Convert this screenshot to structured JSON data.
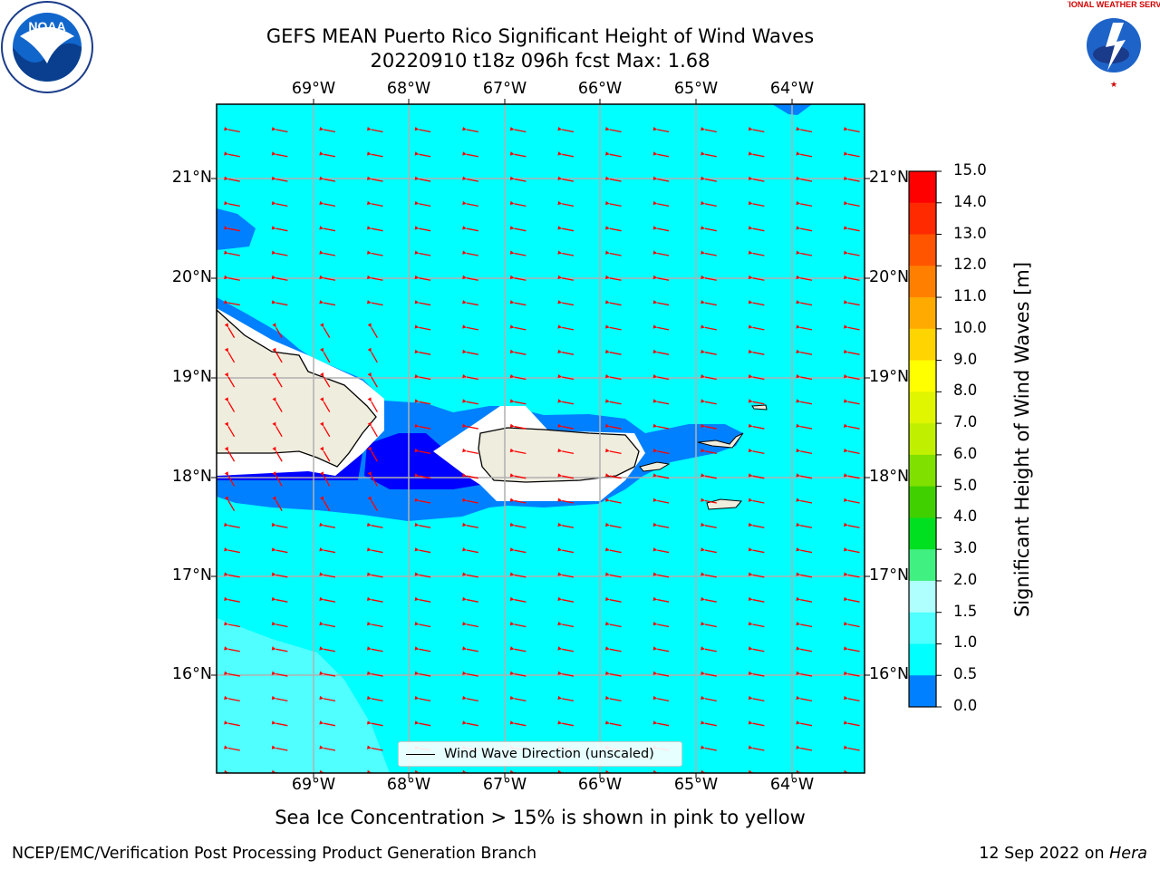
{
  "title": {
    "line1": "GEFS MEAN Puerto Rico Significant Height of Wind Waves",
    "line2": "20220910 t18z 096h fcst   Max: 1.68"
  },
  "lon_labels": [
    "69°W",
    "68°W",
    "67°W",
    "66°W",
    "65°W",
    "64°W"
  ],
  "lat_labels": [
    "21°N",
    "20°N",
    "19°N",
    "18°N",
    "17°N",
    "16°N"
  ],
  "colorbar": {
    "title": "Significant Height of Wind Waves [m]",
    "ticks": [
      "15.0",
      "14.0",
      "13.0",
      "12.0",
      "11.0",
      "10.0",
      "9.0",
      "8.0",
      "7.0",
      "6.0",
      "5.0",
      "4.0",
      "3.0",
      "2.0",
      "1.5",
      "1.0",
      "0.5",
      "0.0"
    ],
    "colors": [
      "#ff0000",
      "#ff2a00",
      "#ff5500",
      "#ff8000",
      "#ffaa00",
      "#ffd400",
      "#ffff00",
      "#e0f500",
      "#c0f000",
      "#80e000",
      "#40d000",
      "#00e020",
      "#40f080",
      "#b0ffff",
      "#50ffff",
      "#00ffff",
      "#0080ff",
      "#0000ff"
    ]
  },
  "legend": {
    "label": "Wind Wave Direction (unscaled)"
  },
  "note": "Sea Ice Concentration > 15% is shown in pink to yellow",
  "footer": {
    "left": "NCEP/EMC/Verification Post Processing Product Generation Branch",
    "date": "12 Sep 2022 on ",
    "host": "Hera"
  },
  "logos": {
    "noaa": "NOAA",
    "nws_text": "NATIONAL WEATHER SERVICE"
  },
  "colors": {
    "sea": "#00ffff",
    "land": "#efedde",
    "arrow": "#ff0000",
    "light_cyan": "#50ffff",
    "mid_blue": "#0080ff",
    "deep_blue": "#0000ff"
  }
}
